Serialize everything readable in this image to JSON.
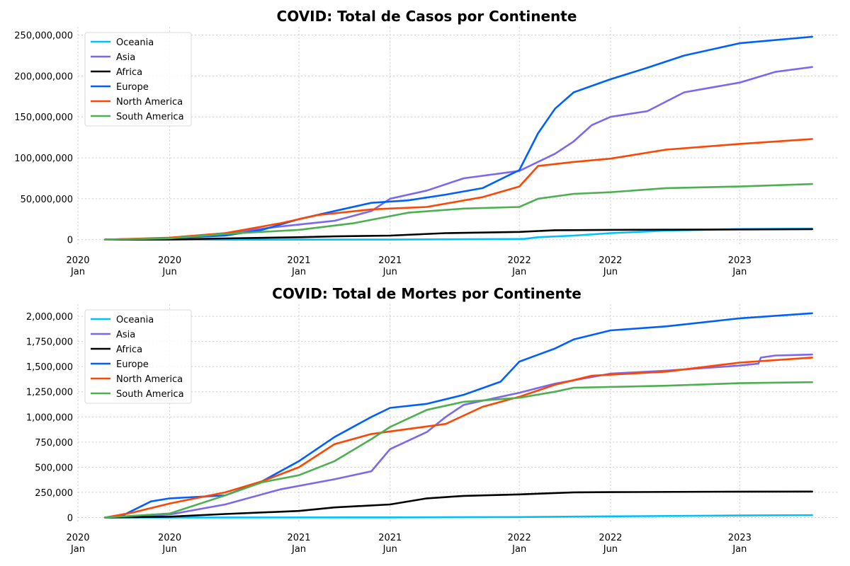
{
  "chart_data": [
    {
      "type": "line",
      "title": "COVID: Total de Casos por Continente",
      "xlabel": "",
      "ylabel": "",
      "xlim": [
        "2020-01-01",
        "2023-06-15"
      ],
      "ylim": [
        -8000000,
        260000000
      ],
      "grid": true,
      "legend_position": "top-left",
      "x_ticks": [
        {
          "date": "2020-01-01",
          "line1": "2020",
          "line2": "Jan"
        },
        {
          "date": "2020-06-01",
          "line1": "2020",
          "line2": "Jun"
        },
        {
          "date": "2021-01-01",
          "line1": "2021",
          "line2": "Jan"
        },
        {
          "date": "2021-06-01",
          "line1": "2021",
          "line2": "Jun"
        },
        {
          "date": "2022-01-01",
          "line1": "2022",
          "line2": "Jan"
        },
        {
          "date": "2022-06-01",
          "line1": "2022",
          "line2": "Jun"
        },
        {
          "date": "2023-01-01",
          "line1": "2023",
          "line2": "Jan"
        }
      ],
      "y_ticks": [
        {
          "value": 0,
          "label": "0"
        },
        {
          "value": 50000000,
          "label": "50,000,000"
        },
        {
          "value": 100000000,
          "label": "100,000,000"
        },
        {
          "value": 150000000,
          "label": "150,000,000"
        },
        {
          "value": 200000000,
          "label": "200,000,000"
        },
        {
          "value": 250000000,
          "label": "250,000,000"
        }
      ],
      "series": [
        {
          "name": "Oceania",
          "color": "#00bfff",
          "points": [
            [
              "2020-02-15",
              0
            ],
            [
              "2021-06-01",
              100000
            ],
            [
              "2022-01-01",
              800000
            ],
            [
              "2022-01-10",
              1000000
            ],
            [
              "2022-02-01",
              3000000
            ],
            [
              "2022-04-01",
              5000000
            ],
            [
              "2022-06-01",
              8000000
            ],
            [
              "2022-09-01",
              11000000
            ],
            [
              "2023-01-01",
              13000000
            ],
            [
              "2023-05-01",
              13500000
            ]
          ]
        },
        {
          "name": "Asia",
          "color": "#7b68ee",
          "points": [
            [
              "2020-02-15",
              0
            ],
            [
              "2020-06-01",
              1500000
            ],
            [
              "2020-09-01",
              8000000
            ],
            [
              "2020-12-01",
              16000000
            ],
            [
              "2021-03-01",
              23000000
            ],
            [
              "2021-05-01",
              35000000
            ],
            [
              "2021-06-01",
              50000000
            ],
            [
              "2021-08-01",
              60000000
            ],
            [
              "2021-10-01",
              75000000
            ],
            [
              "2022-01-01",
              84000000
            ],
            [
              "2022-03-01",
              105000000
            ],
            [
              "2022-04-01",
              120000000
            ],
            [
              "2022-05-01",
              140000000
            ],
            [
              "2022-06-01",
              150000000
            ],
            [
              "2022-08-01",
              157000000
            ],
            [
              "2022-10-01",
              180000000
            ],
            [
              "2023-01-01",
              192000000
            ],
            [
              "2023-03-01",
              205000000
            ],
            [
              "2023-05-01",
              211000000
            ]
          ]
        },
        {
          "name": "Africa",
          "color": "#000000",
          "points": [
            [
              "2020-02-15",
              0
            ],
            [
              "2020-06-01",
              200000
            ],
            [
              "2020-09-01",
              1500000
            ],
            [
              "2021-01-01",
              3000000
            ],
            [
              "2021-03-01",
              4000000
            ],
            [
              "2021-06-01",
              5000000
            ],
            [
              "2021-09-01",
              8000000
            ],
            [
              "2022-01-01",
              9500000
            ],
            [
              "2022-03-01",
              11500000
            ],
            [
              "2022-06-01",
              12000000
            ],
            [
              "2023-01-01",
              12500000
            ],
            [
              "2023-05-01",
              12800000
            ]
          ]
        },
        {
          "name": "Europe",
          "color": "#0060ff",
          "points": [
            [
              "2020-02-15",
              0
            ],
            [
              "2020-06-01",
              2000000
            ],
            [
              "2020-09-01",
              5000000
            ],
            [
              "2020-11-01",
              12000000
            ],
            [
              "2021-01-01",
              25000000
            ],
            [
              "2021-03-01",
              35000000
            ],
            [
              "2021-05-01",
              45000000
            ],
            [
              "2021-07-01",
              48000000
            ],
            [
              "2021-09-01",
              55000000
            ],
            [
              "2021-11-01",
              63000000
            ],
            [
              "2022-01-01",
              85000000
            ],
            [
              "2022-02-01",
              130000000
            ],
            [
              "2022-03-01",
              160000000
            ],
            [
              "2022-04-01",
              180000000
            ],
            [
              "2022-06-01",
              196000000
            ],
            [
              "2022-08-01",
              210000000
            ],
            [
              "2022-10-01",
              225000000
            ],
            [
              "2023-01-01",
              240000000
            ],
            [
              "2023-05-01",
              248000000
            ]
          ]
        },
        {
          "name": "North America",
          "color": "#ff4500",
          "points": [
            [
              "2020-02-15",
              0
            ],
            [
              "2020-06-01",
              2500000
            ],
            [
              "2020-09-01",
              8000000
            ],
            [
              "2020-12-01",
              20000000
            ],
            [
              "2021-02-01",
              30000000
            ],
            [
              "2021-05-01",
              37000000
            ],
            [
              "2021-08-01",
              40000000
            ],
            [
              "2021-11-01",
              52000000
            ],
            [
              "2022-01-01",
              65000000
            ],
            [
              "2022-02-01",
              90000000
            ],
            [
              "2022-04-01",
              95000000
            ],
            [
              "2022-06-01",
              99000000
            ],
            [
              "2022-09-01",
              110000000
            ],
            [
              "2023-01-01",
              117000000
            ],
            [
              "2023-05-01",
              123000000
            ]
          ]
        },
        {
          "name": "South America",
          "color": "#4caf50",
          "points": [
            [
              "2020-02-15",
              0
            ],
            [
              "2020-06-01",
              1500000
            ],
            [
              "2020-09-01",
              7000000
            ],
            [
              "2021-01-01",
              12000000
            ],
            [
              "2021-04-01",
              20000000
            ],
            [
              "2021-07-01",
              33000000
            ],
            [
              "2021-10-01",
              38000000
            ],
            [
              "2022-01-01",
              40000000
            ],
            [
              "2022-02-01",
              50000000
            ],
            [
              "2022-04-01",
              56000000
            ],
            [
              "2022-06-01",
              58000000
            ],
            [
              "2022-09-01",
              63000000
            ],
            [
              "2023-01-01",
              65000000
            ],
            [
              "2023-05-01",
              68000000
            ]
          ]
        }
      ]
    },
    {
      "type": "line",
      "title": "COVID: Total de Mortes por Continente",
      "xlabel": "",
      "ylabel": "",
      "xlim": [
        "2020-01-01",
        "2023-06-15"
      ],
      "ylim": [
        -60000,
        2120000
      ],
      "grid": true,
      "legend_position": "top-left",
      "x_ticks": [
        {
          "date": "2020-01-01",
          "line1": "2020",
          "line2": "Jan"
        },
        {
          "date": "2020-06-01",
          "line1": "2020",
          "line2": "Jun"
        },
        {
          "date": "2021-01-01",
          "line1": "2021",
          "line2": "Jan"
        },
        {
          "date": "2021-06-01",
          "line1": "2021",
          "line2": "Jun"
        },
        {
          "date": "2022-01-01",
          "line1": "2022",
          "line2": "Jan"
        },
        {
          "date": "2022-06-01",
          "line1": "2022",
          "line2": "Jun"
        },
        {
          "date": "2023-01-01",
          "line1": "2023",
          "line2": "Jan"
        }
      ],
      "y_ticks": [
        {
          "value": 0,
          "label": "0"
        },
        {
          "value": 250000,
          "label": "250,000"
        },
        {
          "value": 500000,
          "label": "500,000"
        },
        {
          "value": 750000,
          "label": "750,000"
        },
        {
          "value": 1000000,
          "label": "1,000,000"
        },
        {
          "value": 1250000,
          "label": "1,250,000"
        },
        {
          "value": 1500000,
          "label": "1,500,000"
        },
        {
          "value": 1750000,
          "label": "1,750,000"
        },
        {
          "value": 2000000,
          "label": "2,000,000"
        }
      ],
      "series": [
        {
          "name": "Oceania",
          "color": "#00bfff",
          "points": [
            [
              "2020-02-15",
              0
            ],
            [
              "2021-06-01",
              1500
            ],
            [
              "2022-01-01",
              5000
            ],
            [
              "2022-06-01",
              12000
            ],
            [
              "2023-01-01",
              20000
            ],
            [
              "2023-05-01",
              24000
            ]
          ]
        },
        {
          "name": "Asia",
          "color": "#7b68ee",
          "points": [
            [
              "2020-02-15",
              0
            ],
            [
              "2020-06-01",
              30000
            ],
            [
              "2020-09-01",
              130000
            ],
            [
              "2020-12-01",
              280000
            ],
            [
              "2021-03-01",
              380000
            ],
            [
              "2021-05-01",
              460000
            ],
            [
              "2021-06-01",
              680000
            ],
            [
              "2021-08-01",
              850000
            ],
            [
              "2021-09-01",
              1000000
            ],
            [
              "2021-10-01",
              1120000
            ],
            [
              "2022-01-01",
              1240000
            ],
            [
              "2022-03-01",
              1330000
            ],
            [
              "2022-06-01",
              1430000
            ],
            [
              "2022-09-01",
              1460000
            ],
            [
              "2023-01-01",
              1510000
            ],
            [
              "2023-02-01",
              1530000
            ],
            [
              "2023-02-05",
              1590000
            ],
            [
              "2023-03-01",
              1610000
            ],
            [
              "2023-05-01",
              1620000
            ]
          ]
        },
        {
          "name": "Africa",
          "color": "#000000",
          "points": [
            [
              "2020-02-15",
              0
            ],
            [
              "2020-06-01",
              8000
            ],
            [
              "2020-09-01",
              35000
            ],
            [
              "2021-01-01",
              65000
            ],
            [
              "2021-03-01",
              100000
            ],
            [
              "2021-06-01",
              130000
            ],
            [
              "2021-08-01",
              190000
            ],
            [
              "2021-10-01",
              215000
            ],
            [
              "2022-01-01",
              230000
            ],
            [
              "2022-04-01",
              250000
            ],
            [
              "2022-06-01",
              252000
            ],
            [
              "2023-01-01",
              257000
            ],
            [
              "2023-05-01",
              258000
            ]
          ]
        },
        {
          "name": "Europe",
          "color": "#0060ff",
          "points": [
            [
              "2020-02-15",
              0
            ],
            [
              "2020-03-15",
              20000
            ],
            [
              "2020-05-01",
              160000
            ],
            [
              "2020-06-01",
              190000
            ],
            [
              "2020-09-01",
              220000
            ],
            [
              "2020-11-01",
              360000
            ],
            [
              "2021-01-01",
              560000
            ],
            [
              "2021-03-01",
              800000
            ],
            [
              "2021-05-01",
              1000000
            ],
            [
              "2021-06-01",
              1090000
            ],
            [
              "2021-08-01",
              1130000
            ],
            [
              "2021-10-01",
              1220000
            ],
            [
              "2021-12-01",
              1350000
            ],
            [
              "2022-01-01",
              1550000
            ],
            [
              "2022-03-01",
              1680000
            ],
            [
              "2022-04-01",
              1770000
            ],
            [
              "2022-06-01",
              1860000
            ],
            [
              "2022-09-01",
              1900000
            ],
            [
              "2023-01-01",
              1980000
            ],
            [
              "2023-05-01",
              2030000
            ]
          ]
        },
        {
          "name": "North America",
          "color": "#ff4500",
          "points": [
            [
              "2020-02-15",
              0
            ],
            [
              "2020-04-01",
              50000
            ],
            [
              "2020-06-01",
              140000
            ],
            [
              "2020-09-01",
              250000
            ],
            [
              "2020-11-01",
              360000
            ],
            [
              "2021-01-01",
              500000
            ],
            [
              "2021-03-01",
              730000
            ],
            [
              "2021-05-01",
              830000
            ],
            [
              "2021-07-01",
              880000
            ],
            [
              "2021-09-01",
              930000
            ],
            [
              "2021-11-01",
              1100000
            ],
            [
              "2022-01-01",
              1200000
            ],
            [
              "2022-03-01",
              1320000
            ],
            [
              "2022-05-01",
              1410000
            ],
            [
              "2022-09-01",
              1450000
            ],
            [
              "2023-01-01",
              1540000
            ],
            [
              "2023-05-01",
              1590000
            ]
          ]
        },
        {
          "name": "South America",
          "color": "#4caf50",
          "points": [
            [
              "2020-02-15",
              0
            ],
            [
              "2020-06-01",
              40000
            ],
            [
              "2020-09-01",
              220000
            ],
            [
              "2020-11-01",
              350000
            ],
            [
              "2021-01-01",
              420000
            ],
            [
              "2021-03-01",
              560000
            ],
            [
              "2021-05-01",
              780000
            ],
            [
              "2021-06-01",
              900000
            ],
            [
              "2021-08-01",
              1070000
            ],
            [
              "2021-10-01",
              1150000
            ],
            [
              "2022-01-01",
              1190000
            ],
            [
              "2022-03-01",
              1250000
            ],
            [
              "2022-04-01",
              1290000
            ],
            [
              "2022-09-01",
              1310000
            ],
            [
              "2023-01-01",
              1335000
            ],
            [
              "2023-05-01",
              1345000
            ]
          ]
        }
      ]
    }
  ]
}
